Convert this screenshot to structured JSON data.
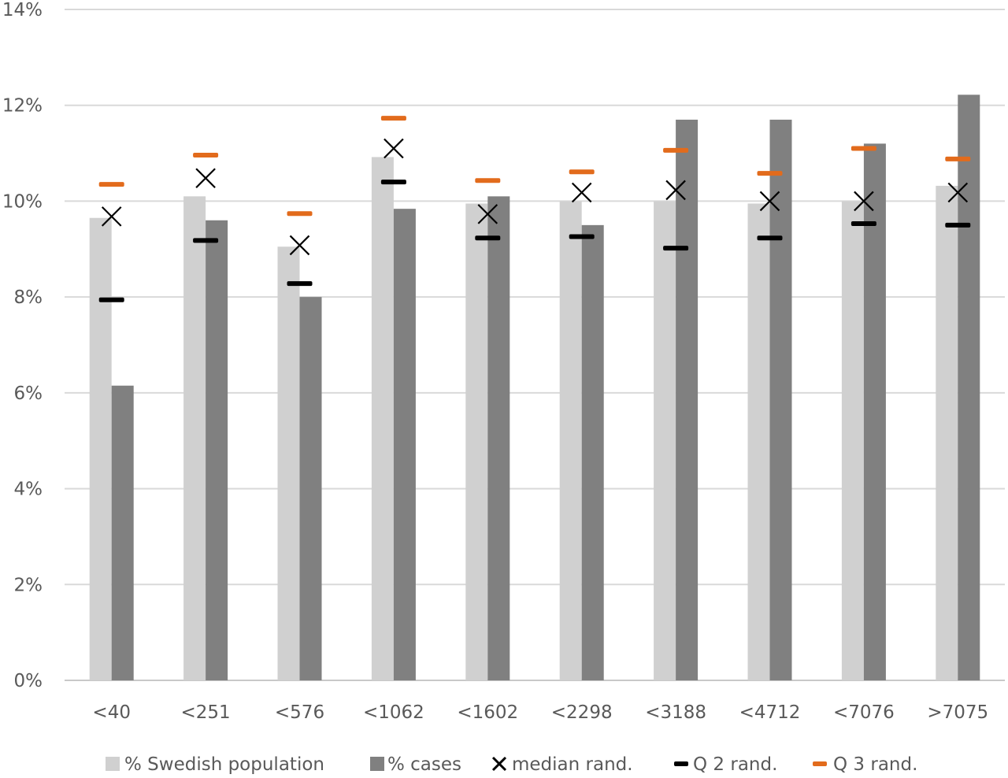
{
  "chart_data": {
    "type": "bar",
    "categories": [
      "<40",
      "<251",
      "<576",
      "<1062",
      "<1602",
      "<2298",
      "<3188",
      "<4712",
      "<7076",
      ">7075"
    ],
    "series": [
      {
        "name": "% Swedish population",
        "kind": "bar",
        "color": "#d0d0d0",
        "values": [
          9.65,
          10.1,
          9.05,
          10.92,
          9.95,
          10.0,
          10.0,
          9.95,
          10.0,
          10.32
        ]
      },
      {
        "name": "% cases",
        "kind": "bar",
        "color": "#808080",
        "values": [
          6.15,
          9.6,
          8.0,
          9.84,
          10.1,
          9.5,
          11.7,
          11.7,
          11.2,
          12.22
        ]
      },
      {
        "name": "median rand.",
        "kind": "marker-x",
        "color": "#000000",
        "values": [
          9.68,
          10.48,
          9.08,
          11.1,
          9.73,
          10.18,
          10.23,
          10.0,
          10.0,
          10.18
        ]
      },
      {
        "name": "Q 2 rand.",
        "kind": "marker-dash",
        "color": "#000000",
        "values": [
          7.94,
          9.18,
          8.28,
          10.4,
          9.23,
          9.26,
          9.02,
          9.23,
          9.53,
          9.5
        ]
      },
      {
        "name": "Q 3 rand.",
        "kind": "marker-dash",
        "color": "#e26b1c",
        "values": [
          10.35,
          10.96,
          9.74,
          11.73,
          10.43,
          10.61,
          11.06,
          10.58,
          11.1,
          10.88
        ]
      }
    ],
    "yticks": [
      "0%",
      "2%",
      "4%",
      "6%",
      "8%",
      "10%",
      "12%",
      "14%"
    ],
    "ylim": [
      0,
      14
    ],
    "title": "",
    "xlabel": "",
    "ylabel": "",
    "grid": true,
    "legend_position": "bottom"
  }
}
